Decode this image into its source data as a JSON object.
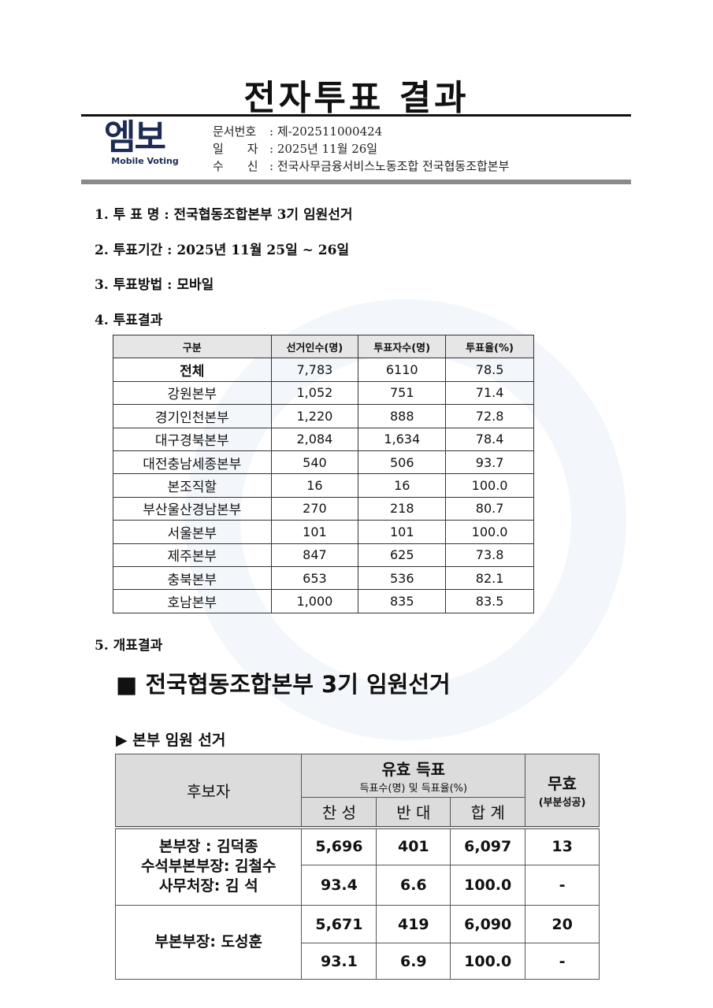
{
  "title": "전자투표 결과",
  "logo": {
    "text": "엠보",
    "sub": "Mobile Voting",
    "accent": "#e0245e",
    "brand": "#1c2a54"
  },
  "header": [
    {
      "key": "문서번호",
      "value": "제-202511000424"
    },
    {
      "key": "일　　자",
      "value": "2025년 11월 26일"
    },
    {
      "key": "수　　신",
      "value": "전국사무금융서비스노동조합 전국협동조합본부"
    }
  ],
  "items": [
    {
      "label": "1. 투 표 명 : 전국협동조합본부 3기 임원선거"
    },
    {
      "label": "2. 투표기간 : 2025년 11월 25일 ~ 26일"
    },
    {
      "label": "3. 투표방법 : 모바일"
    },
    {
      "label": "4. 투표결과"
    },
    {
      "label": "5. 개표결과"
    }
  ],
  "turnout": {
    "headers": [
      "구분",
      "선거인수(명)",
      "투표자수(명)",
      "투표율(%)"
    ],
    "rows": [
      [
        "전체",
        "7,783",
        "6110",
        "78.5"
      ],
      [
        "강원본부",
        "1,052",
        "751",
        "71.4"
      ],
      [
        "경기인천본부",
        "1,220",
        "888",
        "72.8"
      ],
      [
        "대구경북본부",
        "2,084",
        "1,634",
        "78.4"
      ],
      [
        "대전충남세종본부",
        "540",
        "506",
        "93.7"
      ],
      [
        "본조직할",
        "16",
        "16",
        "100.0"
      ],
      [
        "부산울산경남본부",
        "270",
        "218",
        "80.7"
      ],
      [
        "서울본부",
        "101",
        "101",
        "100.0"
      ],
      [
        "제주본부",
        "847",
        "625",
        "73.8"
      ],
      [
        "충북본부",
        "653",
        "536",
        "82.1"
      ],
      [
        "호남본부",
        "1,000",
        "835",
        "83.5"
      ]
    ]
  },
  "results": {
    "heading": "■ 전국협동조합본부 3기 임원선거",
    "sub": "▶ 본부 임원 선거",
    "h_candidate": "후보자",
    "h_valid": "유효 득표",
    "h_valid_sub": "득표수(명) 및 득표율(%)",
    "h_for": "찬 성",
    "h_against": "반 대",
    "h_total": "합 계",
    "h_invalid": "무효",
    "h_invalid_sub": "(부분성공)",
    "rows": [
      {
        "candidate": [
          "본부장 : 김덕종",
          "수석부본부장: 김철수",
          "사무처장: 김 석"
        ],
        "counts": [
          "5,696",
          "401",
          "6,097",
          "13"
        ],
        "rates": [
          "93.4",
          "6.6",
          "100.0",
          "-"
        ]
      },
      {
        "candidate": [
          "부본부장: 도성훈"
        ],
        "counts": [
          "5,671",
          "419",
          "6,090",
          "20"
        ],
        "rates": [
          "93.1",
          "6.9",
          "100.0",
          "-"
        ]
      }
    ]
  }
}
